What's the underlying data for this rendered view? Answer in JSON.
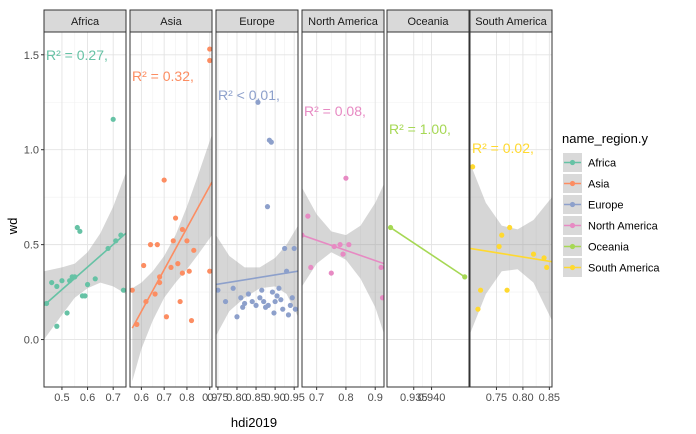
{
  "chart_data": {
    "type": "scatter",
    "title": "",
    "xlabel": "hdi2019",
    "ylabel": "wd",
    "ylim": [
      -0.25,
      1.62
    ],
    "y_ticks": [
      0.0,
      0.5,
      1.0,
      1.5
    ],
    "y_tick_labels": [
      "0.0",
      "0.5",
      "1.0",
      "1.5"
    ],
    "legend": {
      "title": "name_region.y",
      "placement": "right",
      "entries": [
        "Africa",
        "Asia",
        "Europe",
        "North America",
        "Oceania",
        "South America"
      ]
    },
    "facets": [
      {
        "name": "Africa",
        "color": "#66c2a5",
        "xlim": [
          0.43,
          0.75
        ],
        "x_ticks": [
          0.5,
          0.6,
          0.7
        ],
        "x_tick_labels": [
          "0.5",
          "0.6",
          "0.7"
        ],
        "r2_label": "R² = 0.27,",
        "points": [
          [
            0.44,
            0.19
          ],
          [
            0.46,
            0.3
          ],
          [
            0.48,
            0.07
          ],
          [
            0.48,
            0.28
          ],
          [
            0.5,
            0.31
          ],
          [
            0.52,
            0.14
          ],
          [
            0.53,
            0.31
          ],
          [
            0.54,
            0.33
          ],
          [
            0.55,
            0.33
          ],
          [
            0.56,
            0.59
          ],
          [
            0.57,
            0.57
          ],
          [
            0.58,
            0.23
          ],
          [
            0.59,
            0.23
          ],
          [
            0.6,
            0.29
          ],
          [
            0.63,
            0.32
          ],
          [
            0.68,
            0.48
          ],
          [
            0.7,
            1.16
          ],
          [
            0.71,
            0.52
          ],
          [
            0.73,
            0.55
          ],
          [
            0.74,
            0.26
          ]
        ],
        "fit": [
          [
            0.43,
            0.18
          ],
          [
            0.75,
            0.56
          ]
        ],
        "band_upper": [
          [
            0.43,
            0.36
          ],
          [
            0.5,
            0.38
          ],
          [
            0.55,
            0.4
          ],
          [
            0.6,
            0.46
          ],
          [
            0.65,
            0.56
          ],
          [
            0.7,
            0.7
          ],
          [
            0.75,
            0.88
          ]
        ],
        "band_lower": [
          [
            0.43,
            0.0
          ],
          [
            0.5,
            0.13
          ],
          [
            0.55,
            0.22
          ],
          [
            0.6,
            0.27
          ],
          [
            0.65,
            0.3
          ],
          [
            0.7,
            0.28
          ],
          [
            0.75,
            0.24
          ]
        ]
      },
      {
        "name": "Asia",
        "color": "#fc8d62",
        "xlim": [
          0.55,
          0.91
        ],
        "x_ticks": [
          0.6,
          0.7,
          0.8,
          0.9
        ],
        "x_tick_labels": [
          "0.6",
          "0.7",
          "0.8",
          "0.9"
        ],
        "r2_label": "R² = 0.32,",
        "points": [
          [
            0.56,
            0.26
          ],
          [
            0.58,
            0.08
          ],
          [
            0.61,
            0.39
          ],
          [
            0.62,
            0.2
          ],
          [
            0.64,
            0.5
          ],
          [
            0.66,
            0.24
          ],
          [
            0.67,
            0.5
          ],
          [
            0.68,
            0.3
          ],
          [
            0.68,
            0.33
          ],
          [
            0.7,
            0.84
          ],
          [
            0.71,
            0.12
          ],
          [
            0.73,
            0.38
          ],
          [
            0.74,
            0.52
          ],
          [
            0.75,
            0.64
          ],
          [
            0.76,
            0.4
          ],
          [
            0.77,
            0.2
          ],
          [
            0.78,
            0.58
          ],
          [
            0.78,
            0.35
          ],
          [
            0.8,
            0.52
          ],
          [
            0.81,
            0.36
          ],
          [
            0.82,
            0.1
          ],
          [
            0.83,
            0.47
          ],
          [
            0.9,
            1.47
          ],
          [
            0.9,
            1.53
          ],
          [
            0.9,
            0.36
          ]
        ],
        "fit": [
          [
            0.56,
            0.06
          ],
          [
            0.91,
            0.83
          ]
        ],
        "band_upper": [
          [
            0.56,
            0.27
          ],
          [
            0.6,
            0.3
          ],
          [
            0.65,
            0.36
          ],
          [
            0.7,
            0.44
          ],
          [
            0.75,
            0.55
          ],
          [
            0.8,
            0.7
          ],
          [
            0.85,
            0.87
          ],
          [
            0.91,
            1.08
          ]
        ],
        "band_lower": [
          [
            0.56,
            -0.22
          ],
          [
            0.6,
            -0.05
          ],
          [
            0.65,
            0.1
          ],
          [
            0.7,
            0.22
          ],
          [
            0.75,
            0.3
          ],
          [
            0.8,
            0.37
          ],
          [
            0.85,
            0.45
          ],
          [
            0.91,
            0.55
          ]
        ]
      },
      {
        "name": "Europe",
        "color": "#8da0cb",
        "xlim": [
          0.745,
          0.96
        ],
        "x_ticks": [
          0.75,
          0.8,
          0.85,
          0.9,
          0.95
        ],
        "x_tick_labels": [
          "0.75",
          "0.80",
          "0.85",
          "0.90",
          "0.95"
        ],
        "r2_label": "R² < 0.01,",
        "points": [
          [
            0.75,
            0.26
          ],
          [
            0.77,
            0.2
          ],
          [
            0.79,
            0.27
          ],
          [
            0.8,
            0.12
          ],
          [
            0.81,
            0.22
          ],
          [
            0.815,
            0.17
          ],
          [
            0.82,
            0.19
          ],
          [
            0.83,
            0.24
          ],
          [
            0.84,
            0.2
          ],
          [
            0.85,
            0.18
          ],
          [
            0.855,
            1.25
          ],
          [
            0.86,
            0.22
          ],
          [
            0.865,
            0.26
          ],
          [
            0.87,
            0.2
          ],
          [
            0.875,
            0.17
          ],
          [
            0.88,
            0.7
          ],
          [
            0.882,
            0.18
          ],
          [
            0.885,
            1.05
          ],
          [
            0.89,
            1.04
          ],
          [
            0.893,
            0.25
          ],
          [
            0.897,
            0.14
          ],
          [
            0.9,
            0.2
          ],
          [
            0.905,
            0.23
          ],
          [
            0.91,
            0.27
          ],
          [
            0.915,
            0.21
          ],
          [
            0.92,
            0.16
          ],
          [
            0.925,
            0.48
          ],
          [
            0.93,
            0.36
          ],
          [
            0.935,
            0.13
          ],
          [
            0.94,
            0.18
          ],
          [
            0.945,
            0.22
          ],
          [
            0.95,
            0.48
          ],
          [
            0.953,
            0.16
          ]
        ],
        "fit": [
          [
            0.745,
            0.29
          ],
          [
            0.96,
            0.36
          ]
        ],
        "band_upper": [
          [
            0.745,
            0.55
          ],
          [
            0.78,
            0.44
          ],
          [
            0.82,
            0.38
          ],
          [
            0.86,
            0.38
          ],
          [
            0.9,
            0.43
          ],
          [
            0.93,
            0.5
          ],
          [
            0.96,
            0.6
          ]
        ],
        "band_lower": [
          [
            0.745,
            0.02
          ],
          [
            0.78,
            0.15
          ],
          [
            0.82,
            0.22
          ],
          [
            0.86,
            0.27
          ],
          [
            0.9,
            0.28
          ],
          [
            0.93,
            0.24
          ],
          [
            0.96,
            0.12
          ]
        ]
      },
      {
        "name": "North America",
        "color": "#e78ac3",
        "xlim": [
          0.65,
          0.93
        ],
        "x_ticks": [
          0.7,
          0.8,
          0.9
        ],
        "x_tick_labels": [
          "0.7",
          "0.8",
          "0.9"
        ],
        "r2_label": "R² = 0.08,",
        "points": [
          [
            0.65,
            0.55
          ],
          [
            0.67,
            0.65
          ],
          [
            0.68,
            0.38
          ],
          [
            0.75,
            0.35
          ],
          [
            0.76,
            0.49
          ],
          [
            0.78,
            0.5
          ],
          [
            0.79,
            0.45
          ],
          [
            0.8,
            0.85
          ],
          [
            0.81,
            0.5
          ],
          [
            0.92,
            0.38
          ],
          [
            0.925,
            0.22
          ]
        ],
        "fit": [
          [
            0.65,
            0.55
          ],
          [
            0.93,
            0.4
          ]
        ],
        "band_upper": [
          [
            0.65,
            0.8
          ],
          [
            0.7,
            0.66
          ],
          [
            0.75,
            0.57
          ],
          [
            0.8,
            0.55
          ],
          [
            0.85,
            0.6
          ],
          [
            0.9,
            0.72
          ],
          [
            0.93,
            0.82
          ]
        ],
        "band_lower": [
          [
            0.65,
            0.28
          ],
          [
            0.7,
            0.4
          ],
          [
            0.75,
            0.46
          ],
          [
            0.8,
            0.42
          ],
          [
            0.85,
            0.32
          ],
          [
            0.9,
            0.17
          ],
          [
            0.93,
            0.03
          ]
        ]
      },
      {
        "name": "Oceania",
        "color": "#a6d854",
        "xlim": [
          0.9275,
          0.9505
        ],
        "x_ticks": [
          0.935,
          0.94
        ],
        "x_tick_labels": [
          "0.935",
          "0.940"
        ],
        "r2_label": "R² = 1.00,",
        "points": [
          [
            0.9285,
            0.59
          ],
          [
            0.9493,
            0.33
          ]
        ],
        "fit": [
          [
            0.9285,
            0.59
          ],
          [
            0.9493,
            0.33
          ]
        ],
        "band_upper": [],
        "band_lower": []
      },
      {
        "name": "South America",
        "color": "#ffd92f",
        "xlim": [
          0.7,
          0.855
        ],
        "x_ticks": [
          0.75,
          0.8,
          0.85
        ],
        "x_tick_labels": [
          "0.75",
          "0.80",
          "0.85"
        ],
        "r2_label": "R² = 0.02,",
        "points": [
          [
            0.705,
            0.91
          ],
          [
            0.715,
            0.16
          ],
          [
            0.72,
            0.26
          ],
          [
            0.755,
            0.49
          ],
          [
            0.76,
            0.55
          ],
          [
            0.77,
            0.26
          ],
          [
            0.775,
            0.59
          ],
          [
            0.82,
            0.45
          ],
          [
            0.84,
            0.43
          ],
          [
            0.845,
            0.38
          ]
        ],
        "fit": [
          [
            0.7,
            0.48
          ],
          [
            0.855,
            0.41
          ]
        ],
        "band_upper": [
          [
            0.7,
            0.93
          ],
          [
            0.73,
            0.72
          ],
          [
            0.76,
            0.6
          ],
          [
            0.79,
            0.58
          ],
          [
            0.82,
            0.63
          ],
          [
            0.855,
            0.75
          ]
        ],
        "band_lower": [
          [
            0.7,
            0.03
          ],
          [
            0.73,
            0.24
          ],
          [
            0.76,
            0.36
          ],
          [
            0.79,
            0.37
          ],
          [
            0.82,
            0.3
          ],
          [
            0.855,
            0.1
          ]
        ]
      }
    ]
  }
}
